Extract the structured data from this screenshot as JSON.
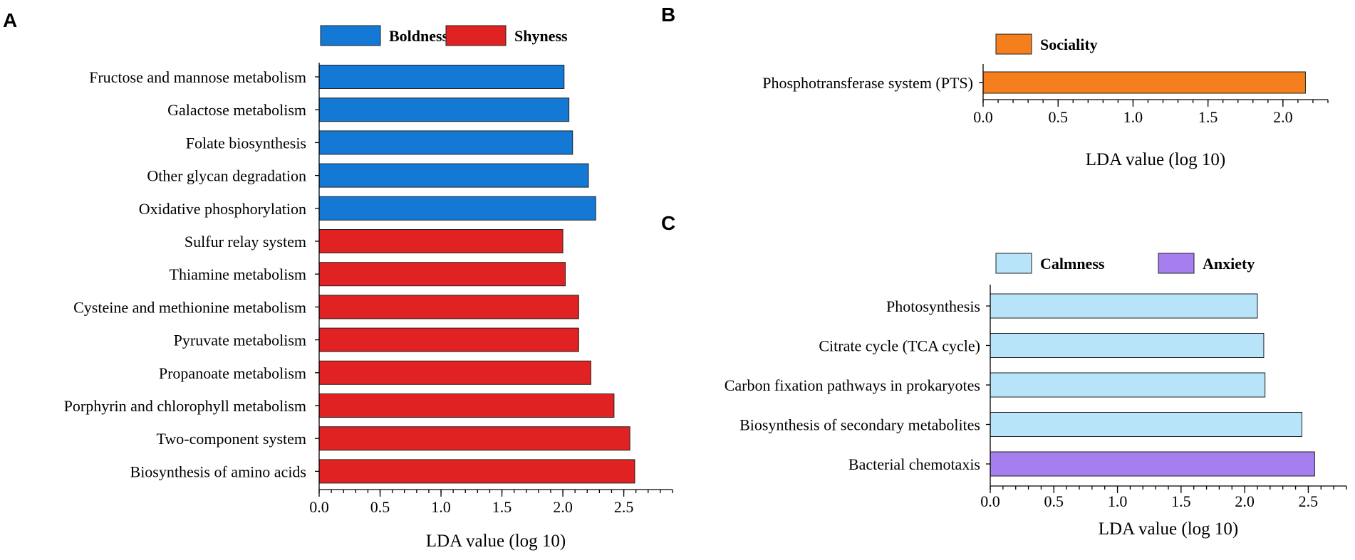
{
  "panel_labels": {
    "a": "A",
    "b": "B",
    "c": "C"
  },
  "colors": {
    "boldness": "#1479d4",
    "shyness": "#e02222",
    "sociality": "#f57f1c",
    "calmness": "#b8e4fa",
    "anxiety": "#a67eef"
  },
  "chart_data": [
    {
      "id": "A",
      "type": "bar",
      "orientation": "horizontal",
      "title": "",
      "xlabel": "LDA value (log 10)",
      "ylabel": "",
      "xlim": [
        0,
        2.9
      ],
      "xticks": [
        "0.0",
        "0.5",
        "1.0",
        "1.5",
        "2.0",
        "2.5"
      ],
      "xtick_values": [
        0,
        0.5,
        1.0,
        1.5,
        2.0,
        2.5
      ],
      "legend": [
        {
          "name": "Boldness",
          "color": "#1479d4"
        },
        {
          "name": "Shyness",
          "color": "#e02222"
        }
      ],
      "legend_position": "top",
      "categories": [
        "Fructose and mannose metabolism",
        "Galactose metabolism",
        "Folate biosynthesis",
        "Other glycan degradation",
        "Oxidative phosphorylation",
        "Sulfur relay system",
        "Thiamine metabolism",
        "Cysteine and methionine metabolism",
        "Pyruvate metabolism",
        "Propanoate metabolism",
        "Porphyrin and chlorophyll metabolism",
        "Two-component system",
        "Biosynthesis of amino acids"
      ],
      "values": [
        2.01,
        2.05,
        2.08,
        2.21,
        2.27,
        2.0,
        2.02,
        2.13,
        2.13,
        2.23,
        2.42,
        2.55,
        2.59
      ],
      "groups": [
        "Boldness",
        "Boldness",
        "Boldness",
        "Boldness",
        "Boldness",
        "Shyness",
        "Shyness",
        "Shyness",
        "Shyness",
        "Shyness",
        "Shyness",
        "Shyness",
        "Shyness"
      ]
    },
    {
      "id": "B",
      "type": "bar",
      "orientation": "horizontal",
      "title": "",
      "xlabel": "LDA value (log 10)",
      "ylabel": "",
      "xlim": [
        0,
        2.3
      ],
      "xticks": [
        "0.0",
        "0.5",
        "1.0",
        "1.5",
        "2.0"
      ],
      "xtick_values": [
        0,
        0.5,
        1.0,
        1.5,
        2.0
      ],
      "legend": [
        {
          "name": "Sociality",
          "color": "#f57f1c"
        }
      ],
      "legend_position": "top",
      "categories": [
        "Phosphotransferase system (PTS)"
      ],
      "values": [
        2.15
      ],
      "groups": [
        "Sociality"
      ]
    },
    {
      "id": "C",
      "type": "bar",
      "orientation": "horizontal",
      "title": "",
      "xlabel": "LDA value (log 10)",
      "ylabel": "",
      "xlim": [
        0,
        2.8
      ],
      "xticks": [
        "0.0",
        "0.5",
        "1.0",
        "1.5",
        "2.0",
        "2.5"
      ],
      "xtick_values": [
        0,
        0.5,
        1.0,
        1.5,
        2.0,
        2.5
      ],
      "legend": [
        {
          "name": "Calmness",
          "color": "#b8e4fa"
        },
        {
          "name": "Anxiety",
          "color": "#a67eef"
        }
      ],
      "legend_position": "top",
      "categories": [
        "Photosynthesis",
        "Citrate cycle (TCA cycle)",
        "Carbon fixation pathways in prokaryotes",
        "Biosynthesis of secondary metabolites",
        "Bacterial chemotaxis"
      ],
      "values": [
        2.1,
        2.15,
        2.16,
        2.45,
        2.55
      ],
      "groups": [
        "Calmness",
        "Calmness",
        "Calmness",
        "Calmness",
        "Anxiety"
      ]
    }
  ]
}
